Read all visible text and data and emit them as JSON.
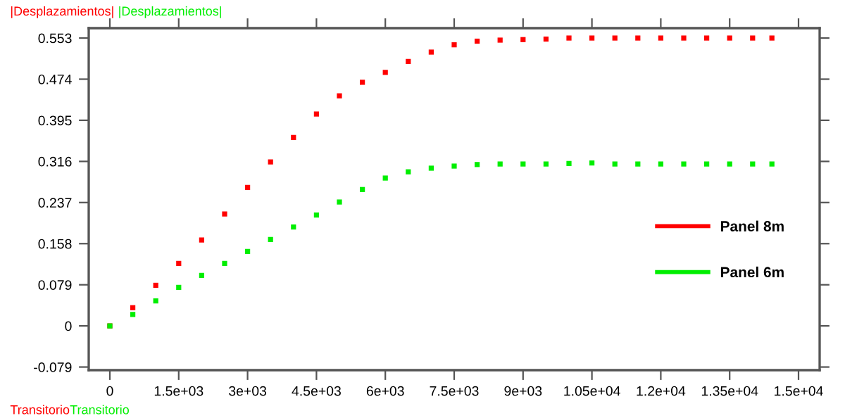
{
  "chart_data": {
    "type": "scatter",
    "marker": "square",
    "legend": "right",
    "grid": false,
    "annotations": [
      "|Desplazamientos|",
      "|Desplazamientos|",
      "Transitorio",
      "Transitorio"
    ],
    "series": [
      {
        "name": "Panel 8m",
        "color": "#ff0000",
        "x": [
          0,
          500,
          1000,
          1500,
          2000,
          2500,
          3000,
          3500,
          4000,
          4500,
          5000,
          5500,
          6000,
          6500,
          7000,
          7500,
          8000,
          8500,
          9000,
          9500,
          10000,
          10500,
          11000,
          11500,
          12000,
          12500,
          13000,
          13500,
          14000,
          14420
        ],
        "values": [
          0,
          0.035,
          0.078,
          0.12,
          0.165,
          0.215,
          0.266,
          0.315,
          0.362,
          0.407,
          0.442,
          0.468,
          0.487,
          0.508,
          0.526,
          0.54,
          0.547,
          0.549,
          0.55,
          0.551,
          0.553,
          0.553,
          0.553,
          0.553,
          0.553,
          0.553,
          0.553,
          0.553,
          0.553,
          0.553
        ]
      },
      {
        "name": "Panel 6m",
        "color": "#00ee00",
        "x": [
          0,
          500,
          1000,
          1500,
          2000,
          2500,
          3000,
          3500,
          4000,
          4500,
          5000,
          5500,
          6000,
          6500,
          7000,
          7500,
          8000,
          8500,
          9000,
          9500,
          10000,
          10500,
          11000,
          11500,
          12000,
          12500,
          13000,
          13500,
          14000,
          14420
        ],
        "values": [
          0,
          0.022,
          0.048,
          0.074,
          0.097,
          0.12,
          0.143,
          0.166,
          0.19,
          0.213,
          0.238,
          0.262,
          0.284,
          0.296,
          0.303,
          0.307,
          0.31,
          0.311,
          0.311,
          0.311,
          0.312,
          0.313,
          0.311,
          0.311,
          0.311,
          0.311,
          0.311,
          0.311,
          0.311,
          0.311
        ]
      }
    ],
    "xlim": [
      -460,
      15460
    ],
    "ylim": [
      -0.085,
      0.572
    ],
    "xticks": [
      0,
      {
        "value": 1500,
        "label": "1.5e+03"
      },
      {
        "value": 3000,
        "label": "3e+03"
      },
      {
        "value": 4500,
        "label": "4.5e+03"
      },
      {
        "value": 6000,
        "label": "6e+03"
      },
      {
        "value": 7500,
        "label": "7.5e+03"
      },
      {
        "value": 9000,
        "label": "9e+03"
      },
      {
        "value": 10500,
        "label": "1.05e+04"
      },
      {
        "value": 12000,
        "label": "1.2e+04"
      },
      {
        "value": 13500,
        "label": "1.35e+04"
      },
      {
        "value": 15000,
        "label": "1.5e+04"
      }
    ],
    "yticks": [
      -0.079,
      0,
      0.079,
      0.158,
      0.237,
      0.316,
      0.395,
      0.474,
      0.553
    ]
  }
}
